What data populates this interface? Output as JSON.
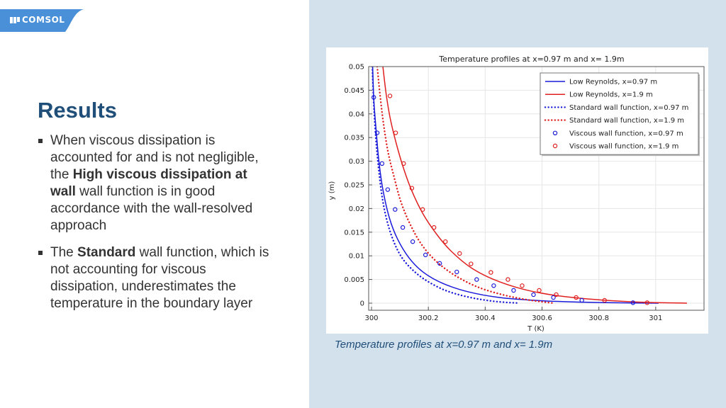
{
  "logo": {
    "text": "COMSOL"
  },
  "slide": {
    "title": "Results",
    "bullet1": {
      "t1": "When viscous dissipation is accounted for and is not negligible, the ",
      "b1": "High viscous dissipation at wall",
      "t2": " wall function is in good accordance with the wall-resolved approach"
    },
    "bullet2": {
      "t1": "The ",
      "b1": "Standard",
      "t2": " wall function, which is not accounting for viscous dissipation, underestimates the temperature in the boundary layer"
    },
    "caption": "Temperature profiles at x=0.97 m and x= 1.9m"
  },
  "colors": {
    "blue": "#1a1adb",
    "red": "#e02020",
    "title": "#1f4e79",
    "panel": "#d3e1ec"
  },
  "chart_data": {
    "type": "line",
    "title": "Temperature profiles at x=0.97 m and x= 1.9m",
    "xlabel": "T (K)",
    "ylabel": "y (m)",
    "xlim": [
      299.99,
      301.17
    ],
    "ylim": [
      -0.0015,
      0.05
    ],
    "xticks": [
      300,
      300.2,
      300.4,
      300.6,
      300.8,
      301
    ],
    "xtick_labels": [
      "300",
      "300.2",
      "300.4",
      "300.6",
      "300.8",
      "301"
    ],
    "yticks": [
      0,
      0.005,
      0.01,
      0.015,
      0.02,
      0.025,
      0.03,
      0.035,
      0.04,
      0.045,
      0.05
    ],
    "ytick_labels": [
      "0",
      "0.005",
      "0.01",
      "0.015",
      "0.02",
      "0.025",
      "0.03",
      "0.035",
      "0.04",
      "0.045",
      "0.05"
    ],
    "grid": true,
    "legend_position": "top-right",
    "series": [
      {
        "name": "Low Reynolds, x=0.97 m",
        "style": "solid",
        "color": "#1a1adb",
        "x": [
          300.004,
          300.008,
          300.017,
          300.026,
          300.04,
          300.063,
          300.092,
          300.133,
          300.183,
          300.25,
          300.34,
          300.45,
          300.6,
          300.75,
          300.9,
          301.01
        ],
        "y": [
          0.05,
          0.043,
          0.036,
          0.03,
          0.024,
          0.018,
          0.0135,
          0.0095,
          0.0065,
          0.0042,
          0.0024,
          0.0012,
          0.0005,
          0.0002,
          5e-05,
          0
        ]
      },
      {
        "name": "Low Reynolds, x=1.9 m",
        "style": "solid",
        "color": "#e02020",
        "x": [
          300.04,
          300.052,
          300.066,
          300.086,
          300.11,
          300.14,
          300.18,
          300.23,
          300.28,
          300.35,
          300.43,
          300.53,
          300.64,
          300.78,
          300.95,
          301.11
        ],
        "y": [
          0.05,
          0.044,
          0.039,
          0.034,
          0.029,
          0.024,
          0.019,
          0.0145,
          0.011,
          0.0075,
          0.005,
          0.003,
          0.0017,
          0.0008,
          0.0002,
          0
        ]
      },
      {
        "name": "Standard wall function, x=0.97 m",
        "style": "dotted",
        "color": "#1a1adb",
        "x": [
          300.003,
          300.008,
          300.015,
          300.024,
          300.036,
          300.052,
          300.075,
          300.105,
          300.145,
          300.195,
          300.26,
          300.34,
          300.43,
          300.52
        ],
        "y": [
          0.05,
          0.042,
          0.035,
          0.029,
          0.023,
          0.018,
          0.0135,
          0.0098,
          0.007,
          0.0047,
          0.0027,
          0.0013,
          0.0004,
          0
        ]
      },
      {
        "name": "Standard wall function, x=1.9 m",
        "style": "dotted",
        "color": "#e02020",
        "x": [
          300.02,
          300.03,
          300.042,
          300.058,
          300.078,
          300.103,
          300.135,
          300.175,
          300.225,
          300.29,
          300.37,
          300.46,
          300.55,
          300.64
        ],
        "y": [
          0.05,
          0.044,
          0.038,
          0.032,
          0.027,
          0.0215,
          0.0168,
          0.0125,
          0.009,
          0.006,
          0.0035,
          0.0018,
          0.0007,
          0
        ]
      },
      {
        "name": "Viscous wall function, x=0.97 m",
        "style": "markers",
        "color": "#1a1adb",
        "x": [
          300.008,
          300.02,
          300.037,
          300.057,
          300.083,
          300.11,
          300.145,
          300.19,
          300.24,
          300.3,
          300.37,
          300.43,
          300.5,
          300.57,
          300.64,
          300.74,
          300.92
        ],
        "y": [
          0.0435,
          0.036,
          0.0295,
          0.024,
          0.0198,
          0.016,
          0.013,
          0.0102,
          0.0084,
          0.0066,
          0.005,
          0.0037,
          0.0027,
          0.0018,
          0.0012,
          0.0006,
          0.0001
        ]
      },
      {
        "name": "Viscous wall function, x=1.9 m",
        "style": "markers",
        "color": "#e02020",
        "x": [
          300.065,
          300.085,
          300.113,
          300.142,
          300.18,
          300.22,
          300.26,
          300.31,
          300.35,
          300.42,
          300.48,
          300.53,
          300.59,
          300.65,
          300.72,
          300.82,
          300.97
        ],
        "y": [
          0.0438,
          0.036,
          0.0295,
          0.0243,
          0.0198,
          0.016,
          0.013,
          0.0105,
          0.0083,
          0.0065,
          0.005,
          0.0037,
          0.0027,
          0.0018,
          0.0012,
          0.0006,
          0.0001
        ]
      }
    ]
  }
}
